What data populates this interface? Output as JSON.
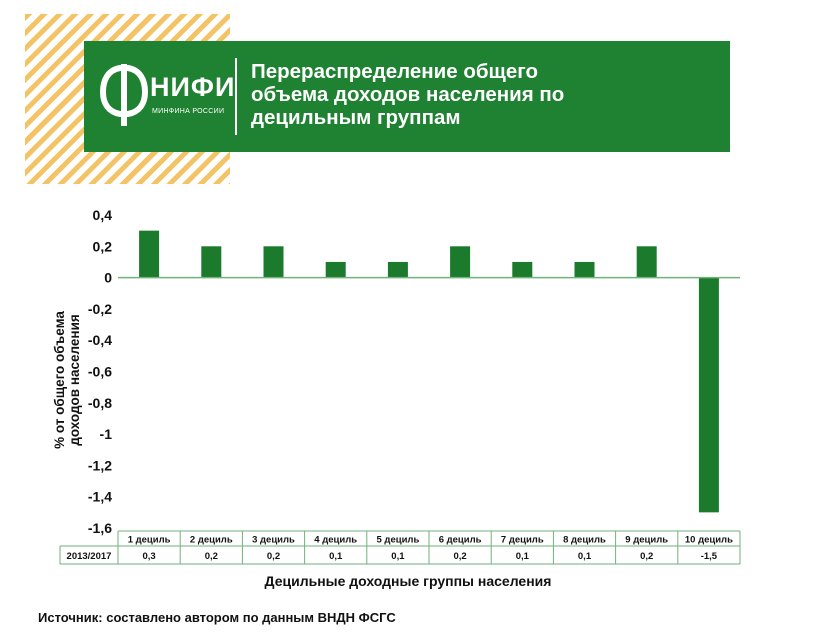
{
  "header": {
    "logo_name": "НИФИ",
    "logo_sub": "МИНФИНА РОССИИ",
    "title_lines": [
      "Перераспределение общего",
      "объема доходов населения по",
      "децильным группам"
    ]
  },
  "colors": {
    "banner": "#1f8132",
    "bar": "#1c7a2c",
    "stripes": "#f3c366"
  },
  "chart_data": {
    "type": "bar",
    "categories": [
      "1 дециль",
      "2 дециль",
      "3 дециль",
      "4 дециль",
      "5 дециль",
      "6 дециль",
      "7 дециль",
      "8 дециль",
      "9 дециль",
      "10 дециль"
    ],
    "values": [
      0.3,
      0.2,
      0.2,
      0.1,
      0.1,
      0.2,
      0.1,
      0.1,
      0.2,
      -1.5
    ],
    "table_row_label": "2013/2017",
    "table_values": [
      "0,3",
      "0,2",
      "0,2",
      "0,1",
      "0,1",
      "0,2",
      "0,1",
      "0,1",
      "0,2",
      "-1,5"
    ],
    "ylabel_lines": [
      "% от общего объема",
      "доходов населения"
    ],
    "xlabel": "Децильные доходные группы населения",
    "ylim": [
      -1.6,
      0.4
    ],
    "yticks": [
      {
        "v": 0.4,
        "label": "0,4"
      },
      {
        "v": 0.2,
        "label": "0,2"
      },
      {
        "v": 0,
        "label": "0"
      },
      {
        "v": -0.2,
        "label": "-0,2"
      },
      {
        "v": -0.4,
        "label": "-0,4"
      },
      {
        "v": -0.6,
        "label": "-0,6"
      },
      {
        "v": -0.8,
        "label": "-0,8"
      },
      {
        "v": -1,
        "label": "-1"
      },
      {
        "v": -1.2,
        "label": "-1,2"
      },
      {
        "v": -1.4,
        "label": "-1,4"
      },
      {
        "v": -1.6,
        "label": "-1,6"
      }
    ],
    "grid": false,
    "legend": "none"
  },
  "source_text": "Источник: составлено автором по данным ВНДН ФСГС"
}
